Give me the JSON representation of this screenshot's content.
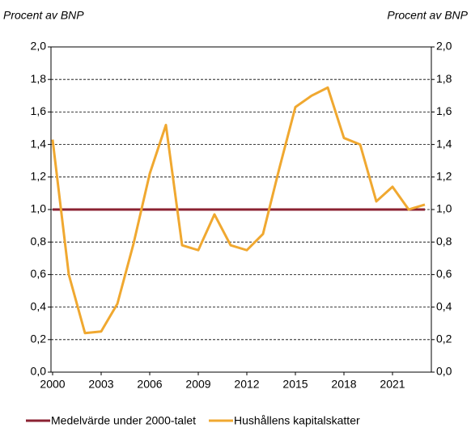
{
  "chart_data": {
    "type": "line",
    "y_label": "Procent av BNP",
    "y2_label": "Procent av BNP",
    "x": [
      2000,
      2001,
      2002,
      2003,
      2004,
      2005,
      2006,
      2007,
      2008,
      2009,
      2010,
      2011,
      2012,
      2013,
      2014,
      2015,
      2016,
      2017,
      2018,
      2019,
      2020,
      2021,
      2022,
      2023
    ],
    "series": [
      {
        "name": "Medelvärde under 2000-talet",
        "color": "#8b2232",
        "values": [
          1.0,
          1.0,
          1.0,
          1.0,
          1.0,
          1.0,
          1.0,
          1.0,
          1.0,
          1.0,
          1.0,
          1.0,
          1.0,
          1.0,
          1.0,
          1.0,
          1.0,
          1.0,
          1.0,
          1.0,
          1.0,
          1.0,
          1.0,
          1.0
        ]
      },
      {
        "name": "Hushållens kapitalskatter",
        "color": "#f0a830",
        "values": [
          1.43,
          0.6,
          0.24,
          0.25,
          0.42,
          0.79,
          1.22,
          1.52,
          0.78,
          0.75,
          0.97,
          0.78,
          0.75,
          0.85,
          1.25,
          1.63,
          1.7,
          1.75,
          1.44,
          1.4,
          1.05,
          1.14,
          1.0,
          1.03
        ]
      }
    ],
    "xlim": [
      1999.9,
      2023.4
    ],
    "xticks": [
      2000,
      2003,
      2006,
      2009,
      2012,
      2015,
      2018,
      2021
    ],
    "ylim": [
      0,
      2
    ],
    "yticks": [
      {
        "value": 0,
        "label": "0,0"
      },
      {
        "value": 0.2,
        "label": "0,2"
      },
      {
        "value": 0.4,
        "label": "0,4"
      },
      {
        "value": 0.6,
        "label": "0,6"
      },
      {
        "value": 0.8,
        "label": "0,8"
      },
      {
        "value": 1,
        "label": "1,0"
      },
      {
        "value": 1.2,
        "label": "1,2"
      },
      {
        "value": 1.4,
        "label": "1,4"
      },
      {
        "value": 1.6,
        "label": "1,6"
      },
      {
        "value": 1.8,
        "label": "1,8"
      },
      {
        "value": 2,
        "label": "2,0"
      }
    ],
    "y2lim": [
      0,
      2
    ],
    "y2ticks": [
      {
        "value": 0,
        "label": "0,0"
      },
      {
        "value": 0.2,
        "label": "0,2"
      },
      {
        "value": 0.4,
        "label": "0,4"
      },
      {
        "value": 0.6,
        "label": "0,6"
      },
      {
        "value": 0.8,
        "label": "0,8"
      },
      {
        "value": 1,
        "label": "1,0"
      },
      {
        "value": 1.2,
        "label": "1,2"
      },
      {
        "value": 1.4,
        "label": "1,4"
      },
      {
        "value": 1.6,
        "label": "1,6"
      },
      {
        "value": 1.8,
        "label": "1,8"
      },
      {
        "value": 2,
        "label": "2,0"
      }
    ],
    "grid": true
  }
}
